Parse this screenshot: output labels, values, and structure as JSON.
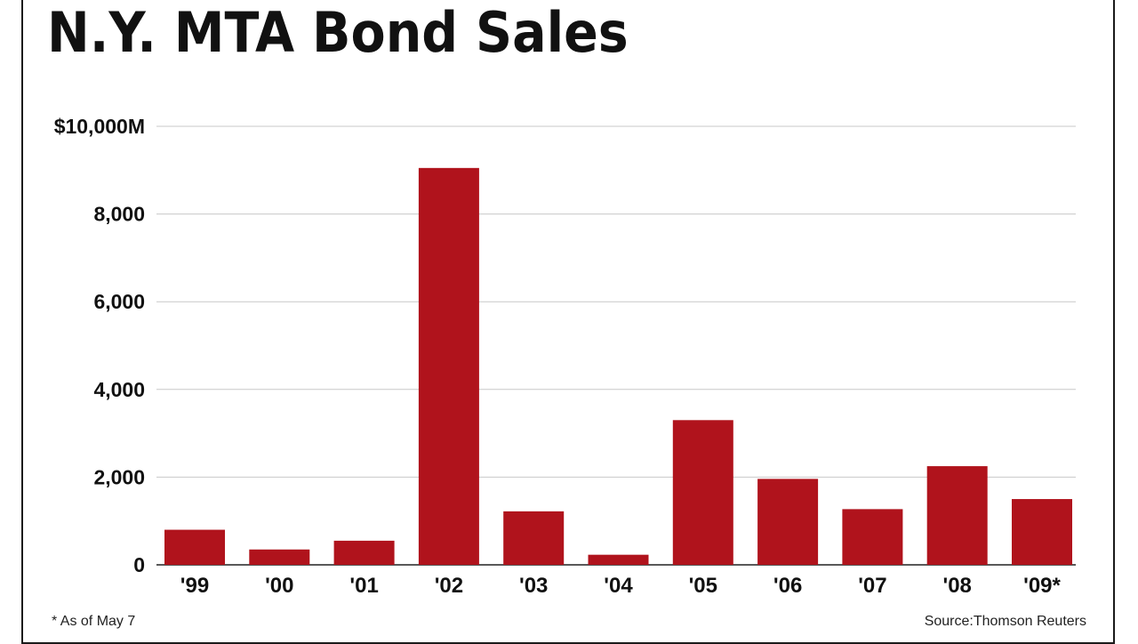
{
  "chart_data": {
    "type": "bar",
    "title": "N.Y. MTA Bond Sales",
    "categories": [
      "'99",
      "'00",
      "'01",
      "'02",
      "'03",
      "'04",
      "'05",
      "'06",
      "'07",
      "'08",
      "'09*"
    ],
    "values": [
      800,
      350,
      550,
      9050,
      1220,
      230,
      3300,
      1960,
      1270,
      2250,
      1500
    ],
    "ylim": [
      0,
      10000
    ],
    "yticks": [
      {
        "value": 10000,
        "label": "$10,000M"
      },
      {
        "value": 8000,
        "label": "8,000"
      },
      {
        "value": 6000,
        "label": "6,000"
      },
      {
        "value": 4000,
        "label": "4,000"
      },
      {
        "value": 2000,
        "label": "2,000"
      },
      {
        "value": 0,
        "label": "0"
      }
    ],
    "grid": true,
    "bar_color": "#b0131c",
    "footnote": "* As of May 7",
    "source": "Source:Thomson Reuters"
  }
}
